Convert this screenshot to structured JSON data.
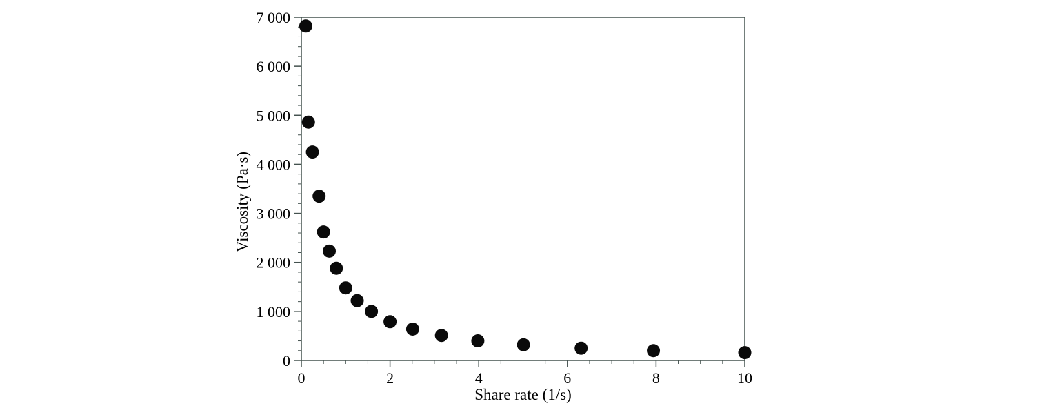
{
  "chart_data": {
    "type": "scatter",
    "title": "",
    "xlabel": "Share rate (1/s)",
    "ylabel": "Viscosity (Pa·s)",
    "xlim": [
      0,
      10
    ],
    "ylim": [
      0,
      7000
    ],
    "grid": false,
    "legend": "none",
    "frame": "full-box",
    "x_major_ticks": [
      0,
      2,
      4,
      6,
      8,
      10
    ],
    "x_tick_labels": [
      "0",
      "2",
      "4",
      "6",
      "8",
      "10"
    ],
    "x_minor_step": 0.5,
    "y_major_ticks": [
      0,
      1000,
      2000,
      3000,
      4000,
      5000,
      6000,
      7000
    ],
    "y_tick_labels": [
      "0",
      "1 000",
      "2 000",
      "3 000",
      "4 000",
      "5 000",
      "6 000",
      "7 000"
    ],
    "y_minor_step": 200,
    "marker": {
      "shape": "circle",
      "color": "#0a0a0a",
      "radius": 9.5
    },
    "frame_color": "#44524f",
    "text_color": "#000000",
    "points": [
      {
        "x": 0.1,
        "y": 6820
      },
      {
        "x": 0.16,
        "y": 4860
      },
      {
        "x": 0.25,
        "y": 4250
      },
      {
        "x": 0.4,
        "y": 3350
      },
      {
        "x": 0.5,
        "y": 2620
      },
      {
        "x": 0.63,
        "y": 2230
      },
      {
        "x": 0.79,
        "y": 1880
      },
      {
        "x": 1.0,
        "y": 1480
      },
      {
        "x": 1.26,
        "y": 1220
      },
      {
        "x": 1.58,
        "y": 1000
      },
      {
        "x": 2.0,
        "y": 790
      },
      {
        "x": 2.51,
        "y": 640
      },
      {
        "x": 3.16,
        "y": 510
      },
      {
        "x": 3.98,
        "y": 400
      },
      {
        "x": 5.01,
        "y": 320
      },
      {
        "x": 6.31,
        "y": 250
      },
      {
        "x": 7.94,
        "y": 200
      },
      {
        "x": 10.0,
        "y": 160
      }
    ]
  }
}
